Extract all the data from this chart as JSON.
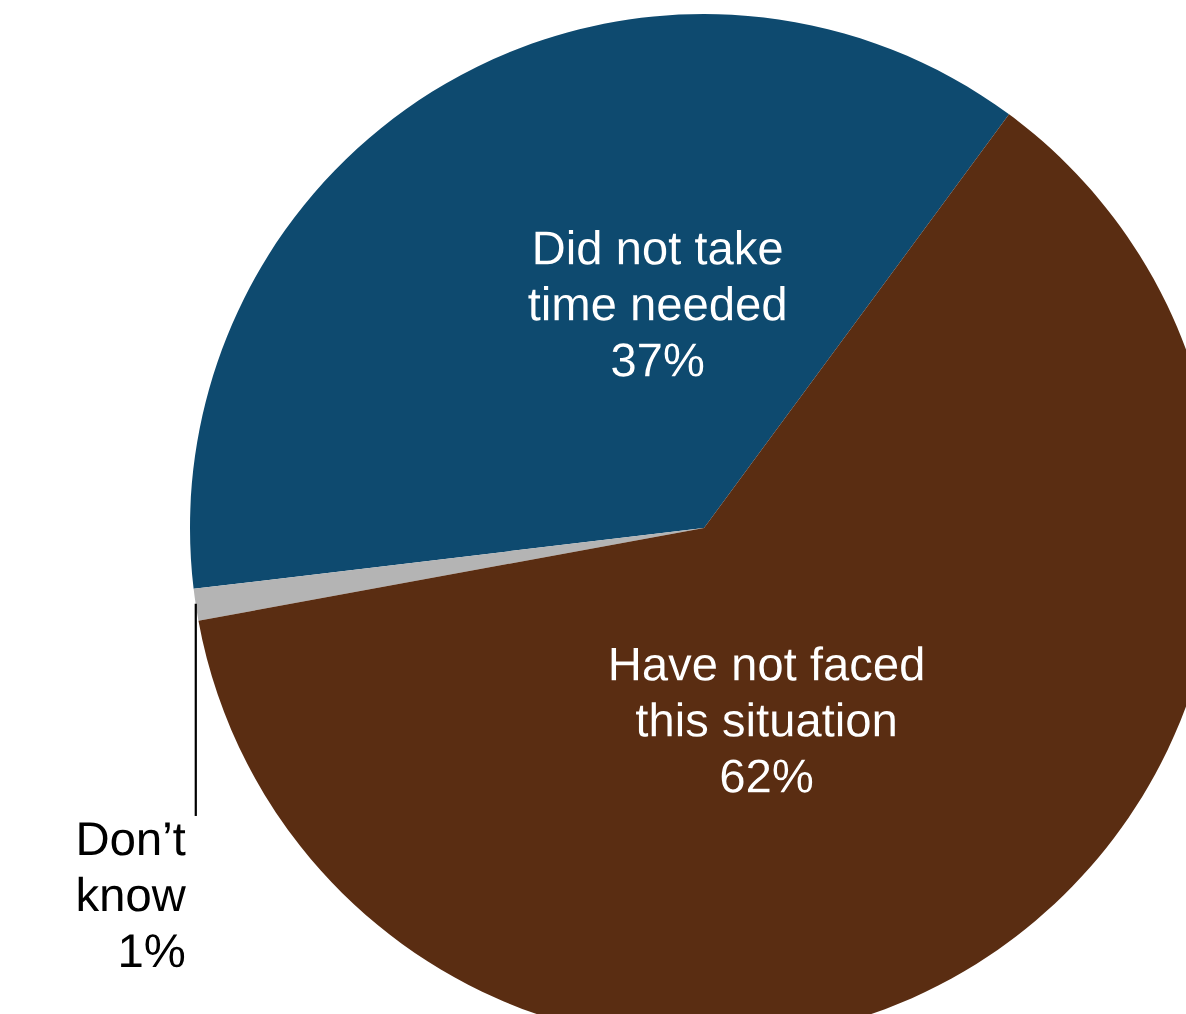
{
  "chart_data": {
    "type": "pie",
    "categories": [
      "Did not take\ntime needed",
      "Don’t\nknow",
      "Have not faced\nthis situation"
    ],
    "values": [
      37,
      1,
      62
    ],
    "colors": [
      "#0e4a6f",
      "#b4b4b4",
      "#5a2d12"
    ],
    "value_labels": [
      "37%",
      "1%",
      "62%"
    ]
  }
}
